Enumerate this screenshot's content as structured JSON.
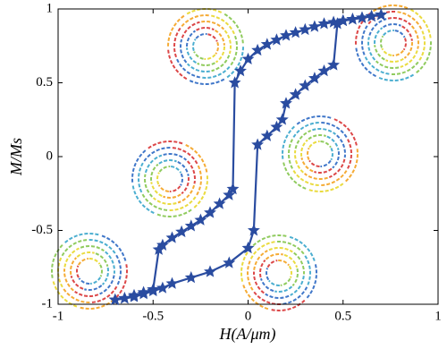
{
  "chart_data": {
    "type": "line",
    "x_label": "H(A/μm)",
    "y_label": "M/Ms",
    "xlim": [
      -1,
      1
    ],
    "xticks": [
      -1,
      -0.5,
      0,
      0.5,
      1
    ],
    "ylim": [
      -1,
      1
    ],
    "yticks": [
      -1,
      -0.5,
      0,
      0.5,
      1
    ],
    "series": [
      {
        "color": "#2a4ca0",
        "x": [
          0.7,
          0.65,
          0.6,
          0.55,
          0.5,
          0.45,
          0.4,
          0.35,
          0.3,
          0.25,
          0.2,
          0.15,
          0.1,
          0.05,
          0,
          -0.04,
          -0.07,
          -0.08,
          -0.1,
          -0.15,
          -0.2,
          -0.25,
          -0.3,
          -0.35,
          -0.4,
          -0.45,
          -0.47,
          -0.5,
          -0.55,
          -0.6,
          -0.65,
          -0.7
        ],
        "values": [
          0.96,
          0.95,
          0.94,
          0.93,
          0.92,
          0.91,
          0.9,
          0.88,
          0.86,
          0.84,
          0.82,
          0.79,
          0.76,
          0.72,
          0.66,
          0.58,
          0.5,
          -0.22,
          -0.26,
          -0.32,
          -0.38,
          -0.43,
          -0.47,
          -0.51,
          -0.55,
          -0.6,
          -0.63,
          -0.9,
          -0.92,
          -0.94,
          -0.96,
          -0.97
        ]
      },
      {
        "color": "#2a4ca0",
        "x": [
          -0.7,
          -0.65,
          -0.6,
          -0.55,
          -0.5,
          -0.45,
          -0.4,
          -0.3,
          -0.2,
          -0.1,
          0,
          0.03,
          0.05,
          0.1,
          0.15,
          0.18,
          0.2,
          0.25,
          0.3,
          0.35,
          0.4,
          0.45,
          0.47,
          0.5,
          0.55,
          0.6,
          0.65,
          0.7
        ],
        "values": [
          -0.97,
          -0.96,
          -0.95,
          -0.93,
          -0.91,
          -0.89,
          -0.86,
          -0.82,
          -0.78,
          -0.72,
          -0.62,
          -0.5,
          0.08,
          0.14,
          0.2,
          0.25,
          0.36,
          0.42,
          0.48,
          0.53,
          0.58,
          0.62,
          0.9,
          0.92,
          0.93,
          0.94,
          0.95,
          0.96
        ]
      }
    ]
  }
}
